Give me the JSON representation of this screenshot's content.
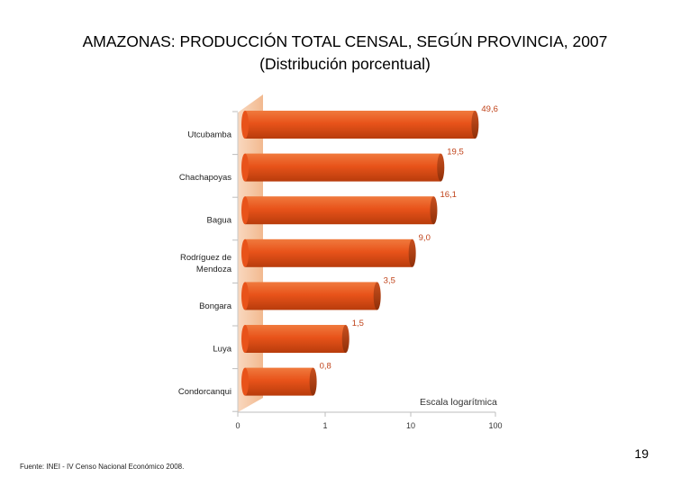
{
  "title": "AMAZONAS: PRODUCCIÓN TOTAL CENSAL, SEGÚN PROVINCIA, 2007",
  "subtitle": "(Distribución porcentual)",
  "page_number": "19",
  "source": "Fuente: INEI - IV Censo Nacional Económico 2008.",
  "chart_data": {
    "type": "bar",
    "orientation": "horizontal",
    "x_scale": "log",
    "scale_note": "Escala logarítmica",
    "categories": [
      "Utcubamba",
      "Chachapoyas",
      "Bagua",
      "Rodríguez de Mendoza",
      "Bongara",
      "Luya",
      "Condorcanqui"
    ],
    "category_lines": [
      [
        "Utcubamba"
      ],
      [
        "Chachapoyas"
      ],
      [
        "Bagua"
      ],
      [
        "Rodríguez de",
        "Mendoza"
      ],
      [
        "Bongara"
      ],
      [
        "Luya"
      ],
      [
        "Condorcanqui"
      ]
    ],
    "values": [
      49.6,
      19.5,
      16.1,
      9.0,
      3.5,
      1.5,
      0.8
    ],
    "value_labels": [
      "49,6",
      "19,5",
      "16,1",
      "9,0",
      "3,5",
      "1,5",
      "0,8"
    ],
    "x_ticks": [
      0,
      1,
      10,
      100
    ],
    "x_tick_labels": [
      "0",
      "1",
      "10",
      "100"
    ],
    "bar_color": "#e8531a",
    "value_label_color": "#c0431a",
    "wall_color": "#f6c9a6"
  }
}
